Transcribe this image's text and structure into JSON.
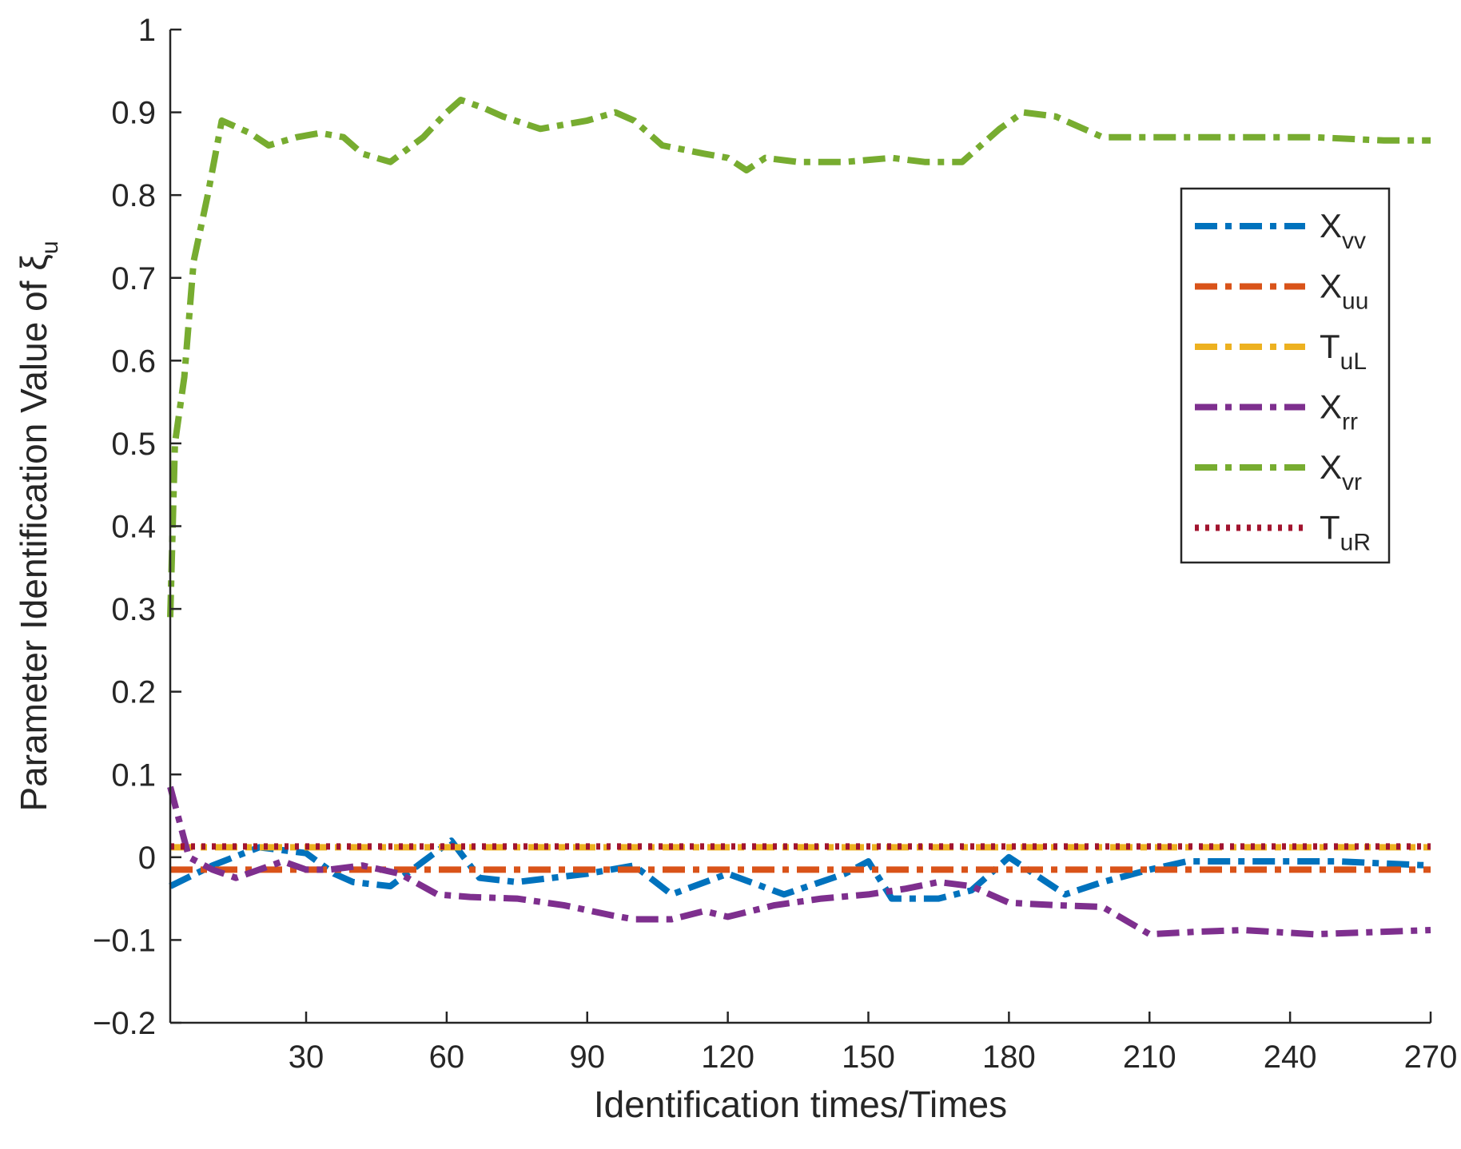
{
  "chart_data": {
    "type": "line",
    "xlabel": "Identification times/Times",
    "ylabel": "Parameter Identification Value of ξ",
    "ylabel_subscript": "u",
    "xlim": [
      1,
      270
    ],
    "ylim": [
      -0.2,
      1
    ],
    "xticks": [
      30,
      60,
      90,
      120,
      150,
      180,
      210,
      240,
      270
    ],
    "yticks": [
      -0.2,
      -0.1,
      0,
      0.1,
      0.2,
      0.3,
      0.4,
      0.5,
      0.6,
      0.7,
      0.8,
      0.9,
      1
    ],
    "ytick_labels": [
      "−0.2",
      "−0.1",
      "0",
      "0.1",
      "0.2",
      "0.3",
      "0.4",
      "0.5",
      "0.6",
      "0.7",
      "0.8",
      "0.9",
      "1"
    ],
    "grid": false,
    "legend_position": "top-right",
    "series": [
      {
        "name": "X",
        "sub": "vv",
        "color": "#0072BD",
        "dash": "dashdot",
        "x": [
          1,
          10,
          20,
          30,
          36,
          40,
          48,
          55,
          61,
          67,
          75,
          90,
          100,
          108,
          120,
          132,
          145,
          150,
          155,
          165,
          172,
          180,
          192,
          200,
          210,
          218,
          230,
          250,
          270
        ],
        "y": [
          -0.035,
          -0.01,
          0.012,
          0.005,
          -0.02,
          -0.03,
          -0.035,
          -0.005,
          0.02,
          -0.025,
          -0.03,
          -0.02,
          -0.01,
          -0.045,
          -0.02,
          -0.045,
          -0.02,
          -0.005,
          -0.05,
          -0.05,
          -0.04,
          0.0,
          -0.045,
          -0.03,
          -0.015,
          -0.005,
          -0.005,
          -0.005,
          -0.01
        ]
      },
      {
        "name": "X",
        "sub": "uu",
        "color": "#D95319",
        "dash": "dashdot",
        "x": [
          1,
          270
        ],
        "y": [
          -0.015,
          -0.015
        ]
      },
      {
        "name": "T",
        "sub": "uL",
        "color": "#EDB120",
        "dash": "dashdot",
        "x": [
          1,
          270
        ],
        "y": [
          0.012,
          0.012
        ]
      },
      {
        "name": "X",
        "sub": "rr",
        "color": "#7E2F8E",
        "dash": "dashdot",
        "x": [
          1,
          5,
          10,
          15,
          25,
          30,
          35,
          42,
          50,
          58,
          65,
          75,
          85,
          95,
          100,
          108,
          115,
          120,
          130,
          140,
          150,
          158,
          165,
          172,
          180,
          190,
          200,
          210,
          220,
          230,
          245,
          260,
          270
        ],
        "y": [
          0.085,
          0.0,
          -0.015,
          -0.025,
          -0.005,
          -0.015,
          -0.015,
          -0.01,
          -0.02,
          -0.045,
          -0.048,
          -0.05,
          -0.058,
          -0.07,
          -0.075,
          -0.075,
          -0.065,
          -0.072,
          -0.058,
          -0.05,
          -0.045,
          -0.038,
          -0.03,
          -0.035,
          -0.055,
          -0.058,
          -0.06,
          -0.093,
          -0.09,
          -0.088,
          -0.093,
          -0.09,
          -0.088
        ]
      },
      {
        "name": "X",
        "sub": "vr",
        "color": "#77AC30",
        "dash": "dashdot",
        "x": [
          1,
          2,
          4,
          6,
          9,
          12,
          18,
          22,
          28,
          33,
          38,
          42,
          48,
          55,
          60,
          63,
          68,
          72,
          80,
          85,
          90,
          96,
          100,
          106,
          115,
          120,
          124,
          128,
          135,
          145,
          155,
          162,
          170,
          178,
          183,
          190,
          200,
          210,
          230,
          245,
          260,
          270
        ],
        "y": [
          0.29,
          0.5,
          0.58,
          0.72,
          0.8,
          0.89,
          0.875,
          0.86,
          0.87,
          0.875,
          0.87,
          0.85,
          0.84,
          0.87,
          0.9,
          0.915,
          0.905,
          0.895,
          0.88,
          0.885,
          0.89,
          0.9,
          0.89,
          0.86,
          0.85,
          0.845,
          0.83,
          0.845,
          0.84,
          0.84,
          0.845,
          0.84,
          0.84,
          0.88,
          0.9,
          0.895,
          0.87,
          0.87,
          0.87,
          0.87,
          0.866,
          0.866
        ]
      },
      {
        "name": "T",
        "sub": "uR",
        "color": "#A2142F",
        "dash": "dot",
        "x": [
          1,
          270
        ],
        "y": [
          0.013,
          0.013
        ]
      }
    ]
  }
}
